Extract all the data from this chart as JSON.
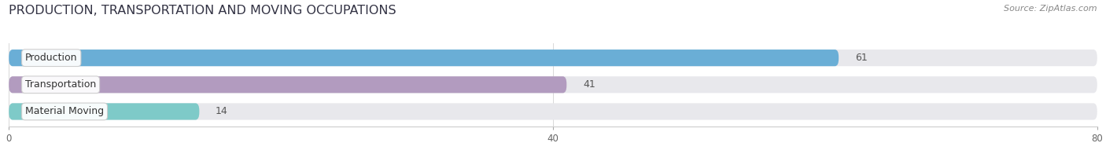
{
  "title": "PRODUCTION, TRANSPORTATION AND MOVING OCCUPATIONS",
  "source_text": "Source: ZipAtlas.com",
  "categories": [
    "Production",
    "Transportation",
    "Material Moving"
  ],
  "values": [
    61,
    41,
    14
  ],
  "bar_colors": [
    "#6aaed6",
    "#b29bbf",
    "#7ecac8"
  ],
  "bar_bg_color": "#e8e8ec",
  "xlim": [
    0,
    80
  ],
  "xticks": [
    0,
    40,
    80
  ],
  "title_fontsize": 11.5,
  "label_fontsize": 9,
  "value_fontsize": 9,
  "source_fontsize": 8,
  "figsize": [
    14.06,
    1.96
  ],
  "dpi": 100
}
